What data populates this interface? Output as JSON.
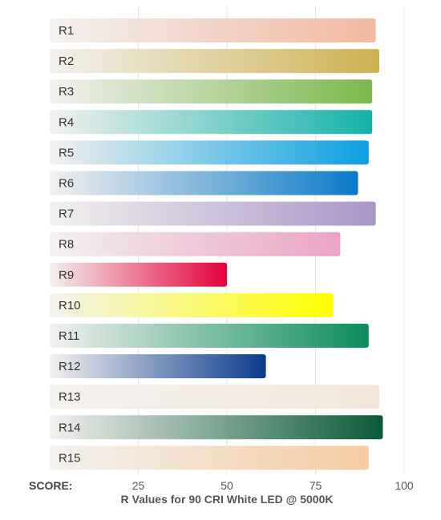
{
  "chart_data": {
    "type": "bar",
    "orientation": "horizontal",
    "title": "R Values for 90 CRI White LED @ 5000K",
    "xlabel": "SCORE:",
    "ylabel": "",
    "xlim": [
      0,
      100
    ],
    "xticks": [
      25,
      50,
      75,
      100
    ],
    "grid": true,
    "categories": [
      "R1",
      "R2",
      "R3",
      "R4",
      "R5",
      "R6",
      "R7",
      "R8",
      "R9",
      "R10",
      "R11",
      "R12",
      "R13",
      "R14",
      "R15"
    ],
    "values": [
      92,
      93,
      91,
      91,
      90,
      87,
      92,
      82,
      50,
      80,
      90,
      61,
      93,
      94,
      90
    ],
    "colors": [
      "#f2b8a0",
      "#cdb251",
      "#7bb84c",
      "#14b2a9",
      "#0aa0e0",
      "#0a7ac9",
      "#a996c8",
      "#eba2c5",
      "#e5003a",
      "#ffff00",
      "#0a8c5c",
      "#0a3b8c",
      "#f3e6d8",
      "#0a5a38",
      "#f5cca3"
    ]
  }
}
